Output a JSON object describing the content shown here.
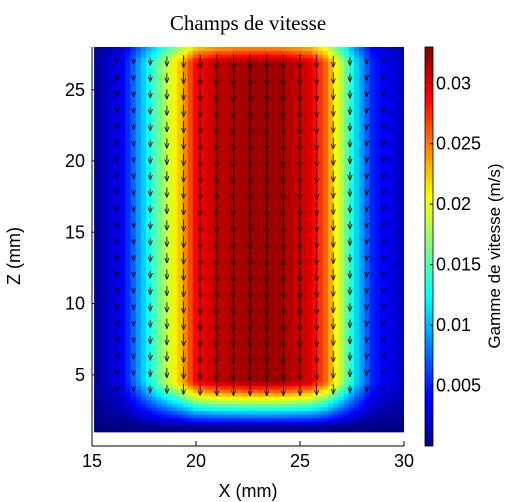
{
  "chart_data": {
    "type": "heatmap",
    "title": "Champs de vitesse",
    "xlabel": "X (mm)",
    "ylabel": "Z (mm)",
    "xlim": [
      15,
      30
    ],
    "ylim": [
      0,
      28
    ],
    "xticks": [
      15,
      20,
      25,
      30
    ],
    "yticks": [
      5,
      10,
      15,
      20,
      25
    ],
    "colorbar": {
      "label": "Gamme de vitesse (m/s)",
      "range": [
        0,
        0.033
      ],
      "ticks": [
        0.005,
        0.01,
        0.015,
        0.02,
        0.025,
        0.03
      ],
      "tick_labels": [
        "0.005",
        "0.01",
        "0.015",
        "0.02",
        "0.025",
        "0.03"
      ],
      "colormap": "jet"
    },
    "field": {
      "x_extent": [
        15.1,
        30
      ],
      "z_extent": [
        1,
        28
      ],
      "velocity_profile_x": [
        15.2,
        16.5,
        17.5,
        18.5,
        19.3,
        20.0,
        21.0,
        22.5,
        24.0,
        25.5,
        26.2,
        26.8,
        27.6,
        28.5,
        30.0
      ],
      "velocity_profile_v": [
        0.001,
        0.004,
        0.011,
        0.018,
        0.023,
        0.029,
        0.031,
        0.032,
        0.032,
        0.03,
        0.026,
        0.02,
        0.012,
        0.005,
        0.002
      ],
      "core_z_range": [
        4.5,
        27
      ],
      "max_speed": 0.032,
      "flow_direction": "downward"
    },
    "quiver": {
      "x_positions": [
        16.2,
        17.0,
        17.8,
        18.6,
        19.4,
        20.2,
        21.0,
        21.8,
        22.6,
        23.4,
        24.2,
        25.0,
        25.8,
        26.6,
        27.4,
        28.2,
        29.0
      ],
      "z_range": [
        3,
        27
      ],
      "direction": "downward"
    }
  }
}
